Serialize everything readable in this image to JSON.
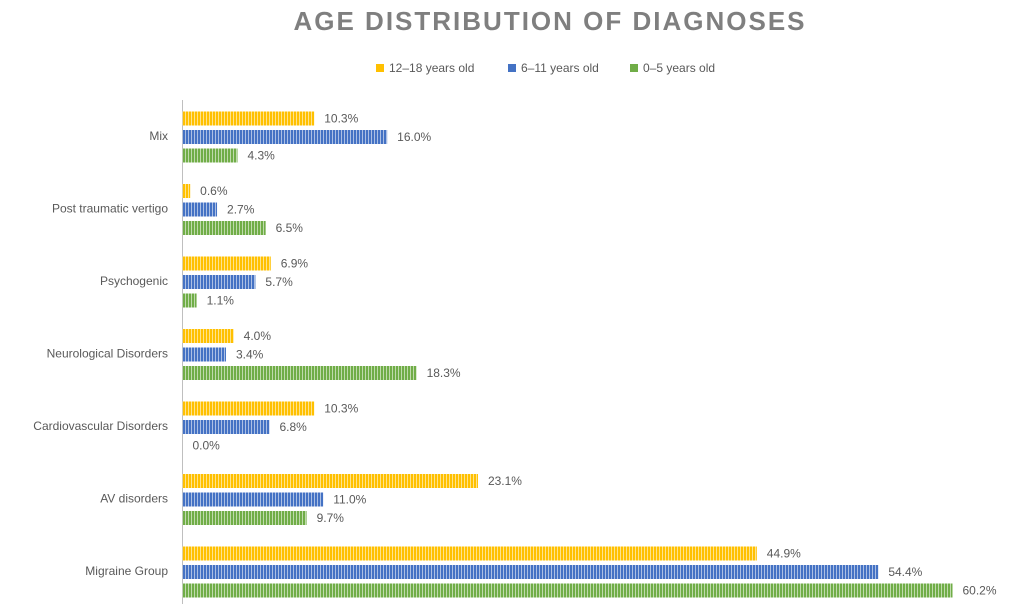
{
  "chart_data": {
    "type": "bar",
    "orientation": "horizontal",
    "title": "AGE DISTRIBUTION OF DIAGNOSES",
    "categories": [
      "Mix",
      "Post traumatic vertigo",
      "Psychogenic",
      "Neurological Disorders",
      "Cardiovascular Disorders",
      "AV disorders",
      "Migraine Group"
    ],
    "series": [
      {
        "name": "12–18 years old",
        "color": "#ffc000",
        "values": [
          10.3,
          0.6,
          6.9,
          4.0,
          10.3,
          23.1,
          44.9
        ],
        "value_labels": [
          "10.3%",
          "0.6%",
          "6.9%",
          "4.0%",
          "10.3%",
          "23.1%",
          "44.9%"
        ]
      },
      {
        "name": "6–11 years old",
        "color": "#4472c4",
        "values": [
          16.0,
          2.7,
          5.7,
          3.4,
          6.8,
          11.0,
          54.4
        ],
        "value_labels": [
          "16.0%",
          "2.7%",
          "5.7%",
          "3.4%",
          "6.8%",
          "11.0%",
          "54.4%"
        ]
      },
      {
        "name": "0–5 years old",
        "color": "#70ad47",
        "values": [
          4.3,
          6.5,
          1.1,
          18.3,
          0.0,
          9.7,
          60.2
        ],
        "value_labels": [
          "4.3%",
          "6.5%",
          "1.1%",
          "18.3%",
          "0.0%",
          "9.7%",
          "60.2%"
        ]
      }
    ],
    "legend": "top"
  }
}
